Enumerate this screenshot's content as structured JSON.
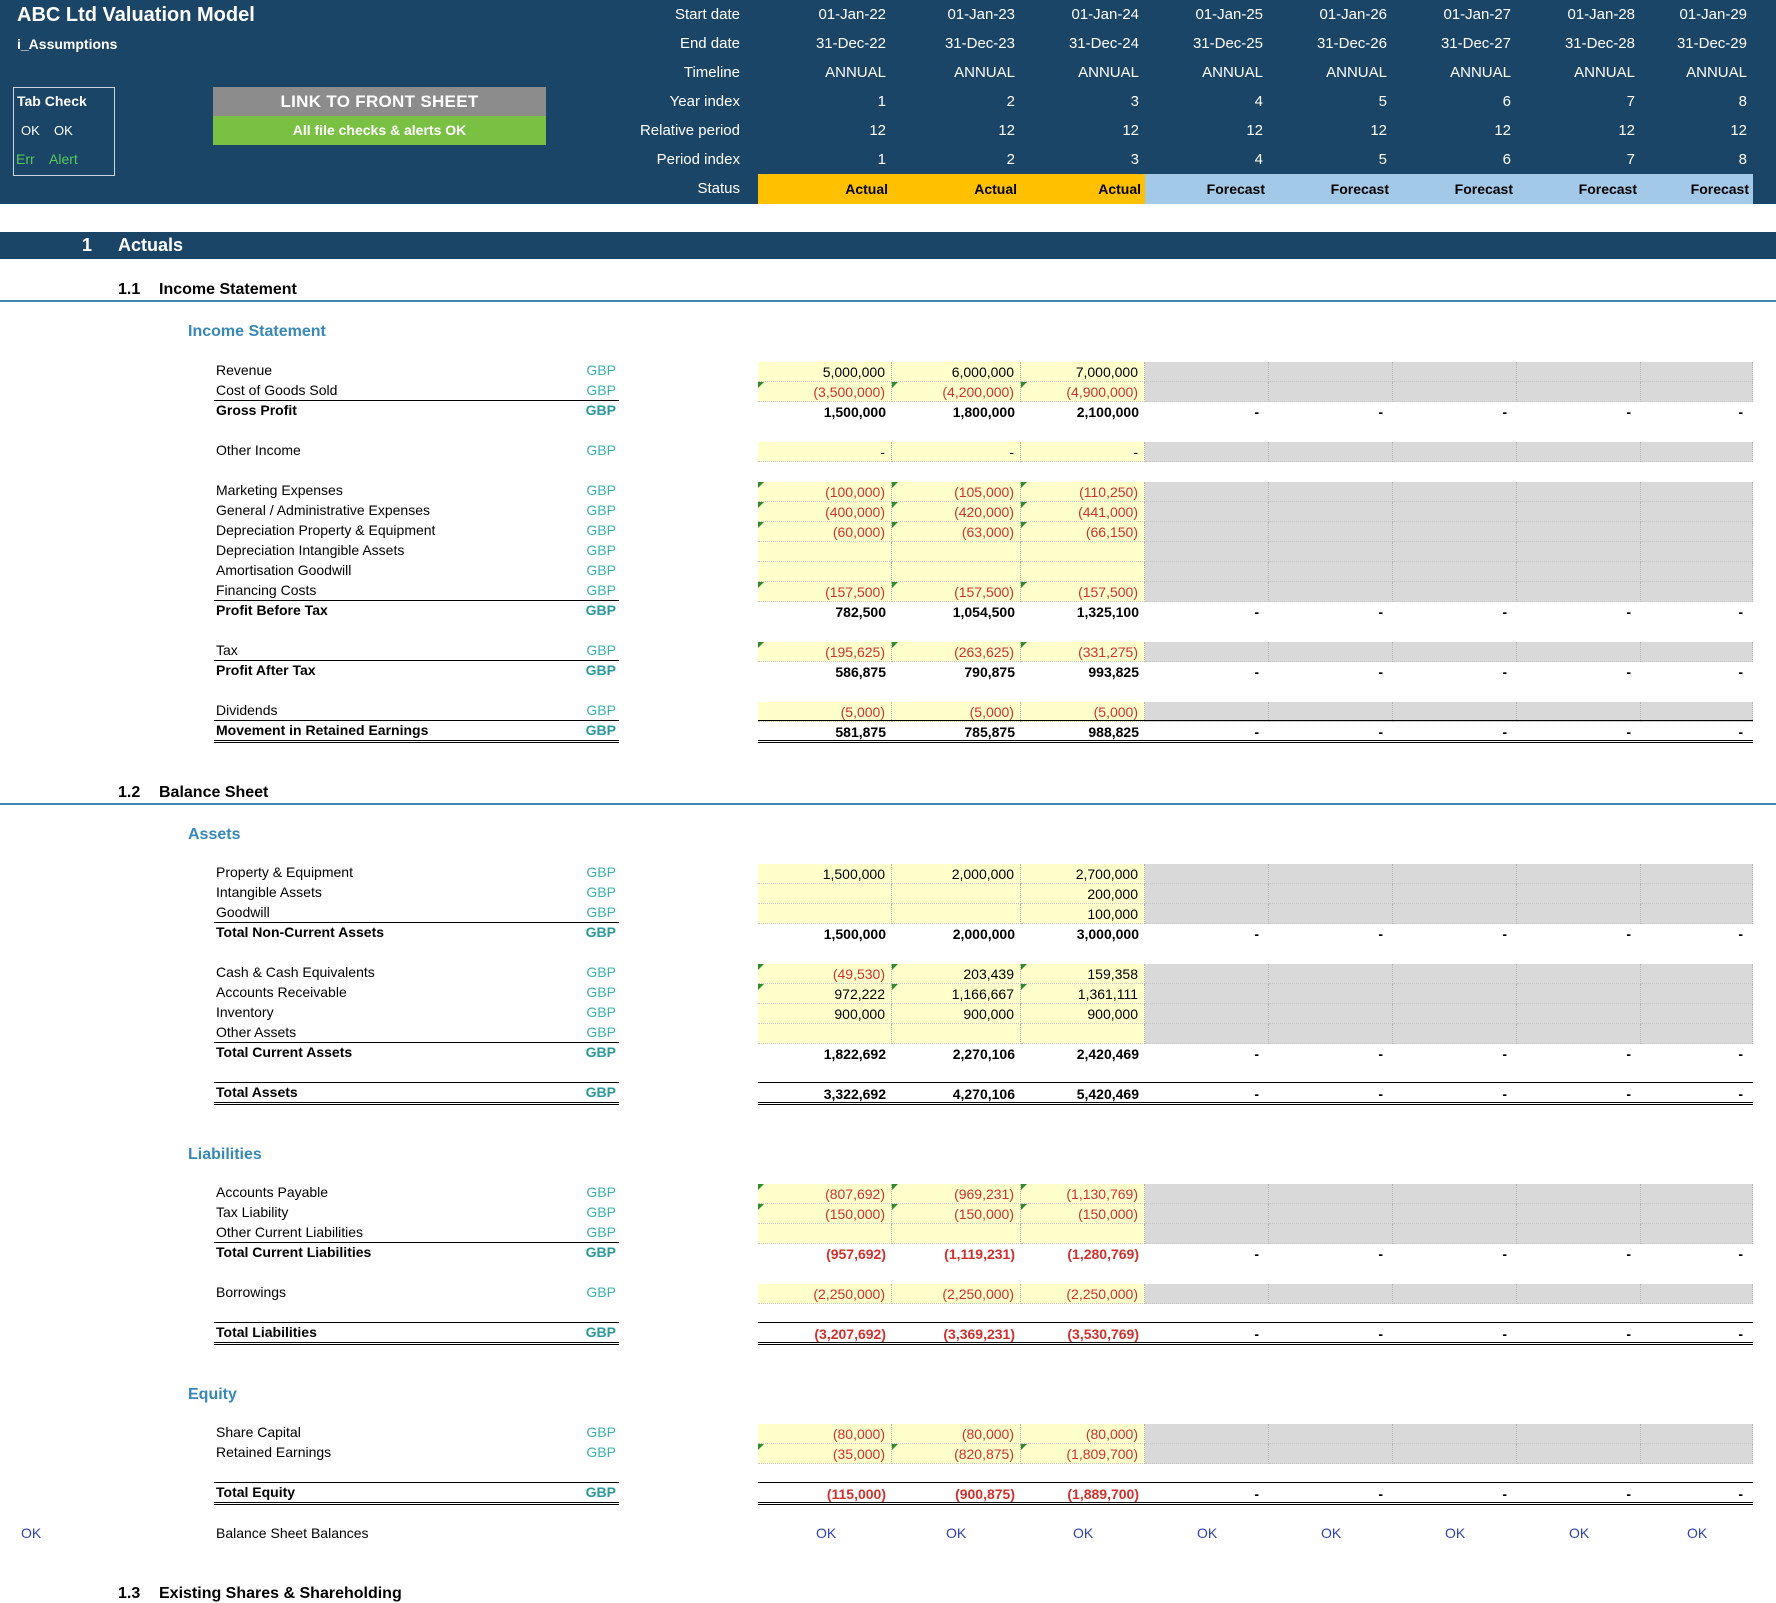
{
  "header": {
    "title": "ABC Ltd Valuation Model",
    "sheet": "i_Assumptions",
    "tab_check": {
      "title": "Tab Check",
      "ok1": "OK",
      "ok2": "OK",
      "err": "Err",
      "alert": "Alert"
    },
    "link_button": "LINK TO FRONT SHEET",
    "checks_status": "All file checks & alerts OK",
    "labels": {
      "start": "Start date",
      "end": "End date",
      "timeline": "Timeline",
      "year_index": "Year index",
      "relative_period": "Relative period",
      "period_index": "Period index",
      "status": "Status"
    },
    "periods": [
      {
        "start": "01-Jan-22",
        "end": "31-Dec-22",
        "timeline": "ANNUAL",
        "year": "1",
        "rel": "12",
        "pidx": "1",
        "status": "Actual"
      },
      {
        "start": "01-Jan-23",
        "end": "31-Dec-23",
        "timeline": "ANNUAL",
        "year": "2",
        "rel": "12",
        "pidx": "2",
        "status": "Actual"
      },
      {
        "start": "01-Jan-24",
        "end": "31-Dec-24",
        "timeline": "ANNUAL",
        "year": "3",
        "rel": "12",
        "pidx": "3",
        "status": "Actual"
      },
      {
        "start": "01-Jan-25",
        "end": "31-Dec-25",
        "timeline": "ANNUAL",
        "year": "4",
        "rel": "12",
        "pidx": "4",
        "status": "Forecast"
      },
      {
        "start": "01-Jan-26",
        "end": "31-Dec-26",
        "timeline": "ANNUAL",
        "year": "5",
        "rel": "12",
        "pidx": "5",
        "status": "Forecast"
      },
      {
        "start": "01-Jan-27",
        "end": "31-Dec-27",
        "timeline": "ANNUAL",
        "year": "6",
        "rel": "12",
        "pidx": "6",
        "status": "Forecast"
      },
      {
        "start": "01-Jan-28",
        "end": "31-Dec-28",
        "timeline": "ANNUAL",
        "year": "7",
        "rel": "12",
        "pidx": "7",
        "status": "Forecast"
      },
      {
        "start": "01-Jan-29",
        "end": "31-Dec-29",
        "timeline": "ANNUAL",
        "year": "8",
        "rel": "12",
        "pidx": "8",
        "status": "Forecast"
      }
    ]
  },
  "section": {
    "number": "1",
    "title": "Actuals"
  },
  "sub_income": {
    "number": "1.1",
    "title": "Income Statement"
  },
  "sub_balance": {
    "number": "1.2",
    "title": "Balance Sheet"
  },
  "sub_shares": {
    "number": "1.3",
    "title": "Existing Shares & Shareholding"
  },
  "currency": "GBP",
  "dash": "-",
  "ok_text": "OK",
  "income_head": "Income Statement",
  "assets_head": "Assets",
  "liab_head": "Liabilities",
  "equity_head": "Equity",
  "rows": {
    "revenue": {
      "label": "Revenue",
      "v": [
        "5,000,000",
        "6,000,000",
        "7,000,000"
      ]
    },
    "cogs": {
      "label": "Cost of Goods Sold",
      "v": [
        "(3,500,000)",
        "(4,200,000)",
        "(4,900,000)"
      ]
    },
    "gross": {
      "label": "Gross Profit",
      "v": [
        "1,500,000",
        "1,800,000",
        "2,100,000"
      ]
    },
    "other_income": {
      "label": "Other Income",
      "v": [
        "-",
        "-",
        "-"
      ]
    },
    "marketing": {
      "label": "Marketing Expenses",
      "v": [
        "(100,000)",
        "(105,000)",
        "(110,250)"
      ]
    },
    "ga": {
      "label": "General / Administrative Expenses",
      "v": [
        "(400,000)",
        "(420,000)",
        "(441,000)"
      ]
    },
    "dep_ppe": {
      "label": "Depreciation Property & Equipment",
      "v": [
        "(60,000)",
        "(63,000)",
        "(66,150)"
      ]
    },
    "dep_int": {
      "label": "Depreciation Intangible Assets",
      "v": [
        "",
        "",
        ""
      ]
    },
    "amort": {
      "label": "Amortisation Goodwill",
      "v": [
        "",
        "",
        ""
      ]
    },
    "fin": {
      "label": "Financing Costs",
      "v": [
        "(157,500)",
        "(157,500)",
        "(157,500)"
      ]
    },
    "pbt": {
      "label": "Profit Before Tax",
      "v": [
        "782,500",
        "1,054,500",
        "1,325,100"
      ]
    },
    "tax": {
      "label": "Tax",
      "v": [
        "(195,625)",
        "(263,625)",
        "(331,275)"
      ]
    },
    "pat": {
      "label": "Profit After Tax",
      "v": [
        "586,875",
        "790,875",
        "993,825"
      ]
    },
    "div": {
      "label": "Dividends",
      "v": [
        "(5,000)",
        "(5,000)",
        "(5,000)"
      ]
    },
    "mre": {
      "label": "Movement in Retained Earnings",
      "v": [
        "581,875",
        "785,875",
        "988,825"
      ]
    },
    "ppe": {
      "label": "Property & Equipment",
      "v": [
        "1,500,000",
        "2,000,000",
        "2,700,000"
      ]
    },
    "intang": {
      "label": "Intangible Assets",
      "v": [
        "",
        "",
        "200,000"
      ]
    },
    "goodwill": {
      "label": "Goodwill",
      "v": [
        "",
        "",
        "100,000"
      ]
    },
    "tnca": {
      "label": "Total Non-Current Assets",
      "v": [
        "1,500,000",
        "2,000,000",
        "3,000,000"
      ]
    },
    "cash": {
      "label": "Cash & Cash Equivalents",
      "v": [
        "(49,530)",
        "203,439",
        "159,358"
      ]
    },
    "ar": {
      "label": "Accounts Receivable",
      "v": [
        "972,222",
        "1,166,667",
        "1,361,111"
      ]
    },
    "inv": {
      "label": "Inventory",
      "v": [
        "900,000",
        "900,000",
        "900,000"
      ]
    },
    "oa": {
      "label": "Other Assets",
      "v": [
        "",
        "",
        ""
      ]
    },
    "tca": {
      "label": "Total Current Assets",
      "v": [
        "1,822,692",
        "2,270,106",
        "2,420,469"
      ]
    },
    "ta": {
      "label": "Total Assets",
      "v": [
        "3,322,692",
        "4,270,106",
        "5,420,469"
      ]
    },
    "ap": {
      "label": "Accounts Payable",
      "v": [
        "(807,692)",
        "(969,231)",
        "(1,130,769)"
      ]
    },
    "taxl": {
      "label": "Tax Liability",
      "v": [
        "(150,000)",
        "(150,000)",
        "(150,000)"
      ]
    },
    "ocl": {
      "label": "Other Current Liabilities",
      "v": [
        "",
        "",
        ""
      ]
    },
    "tcl": {
      "label": "Total Current Liabilities",
      "v": [
        "(957,692)",
        "(1,119,231)",
        "(1,280,769)"
      ]
    },
    "borrow": {
      "label": "Borrowings",
      "v": [
        "(2,250,000)",
        "(2,250,000)",
        "(2,250,000)"
      ]
    },
    "tl": {
      "label": "Total Liabilities",
      "v": [
        "(3,207,692)",
        "(3,369,231)",
        "(3,530,769)"
      ]
    },
    "sc": {
      "label": "Share Capital",
      "v": [
        "(80,000)",
        "(80,000)",
        "(80,000)"
      ]
    },
    "re": {
      "label": "Retained Earnings",
      "v": [
        "(35,000)",
        "(820,875)",
        "(1,809,700)"
      ]
    },
    "te": {
      "label": "Total Equity",
      "v": [
        "(115,000)",
        "(900,875)",
        "(1,889,700)"
      ]
    }
  },
  "balance_check_label": "Balance Sheet Balances"
}
